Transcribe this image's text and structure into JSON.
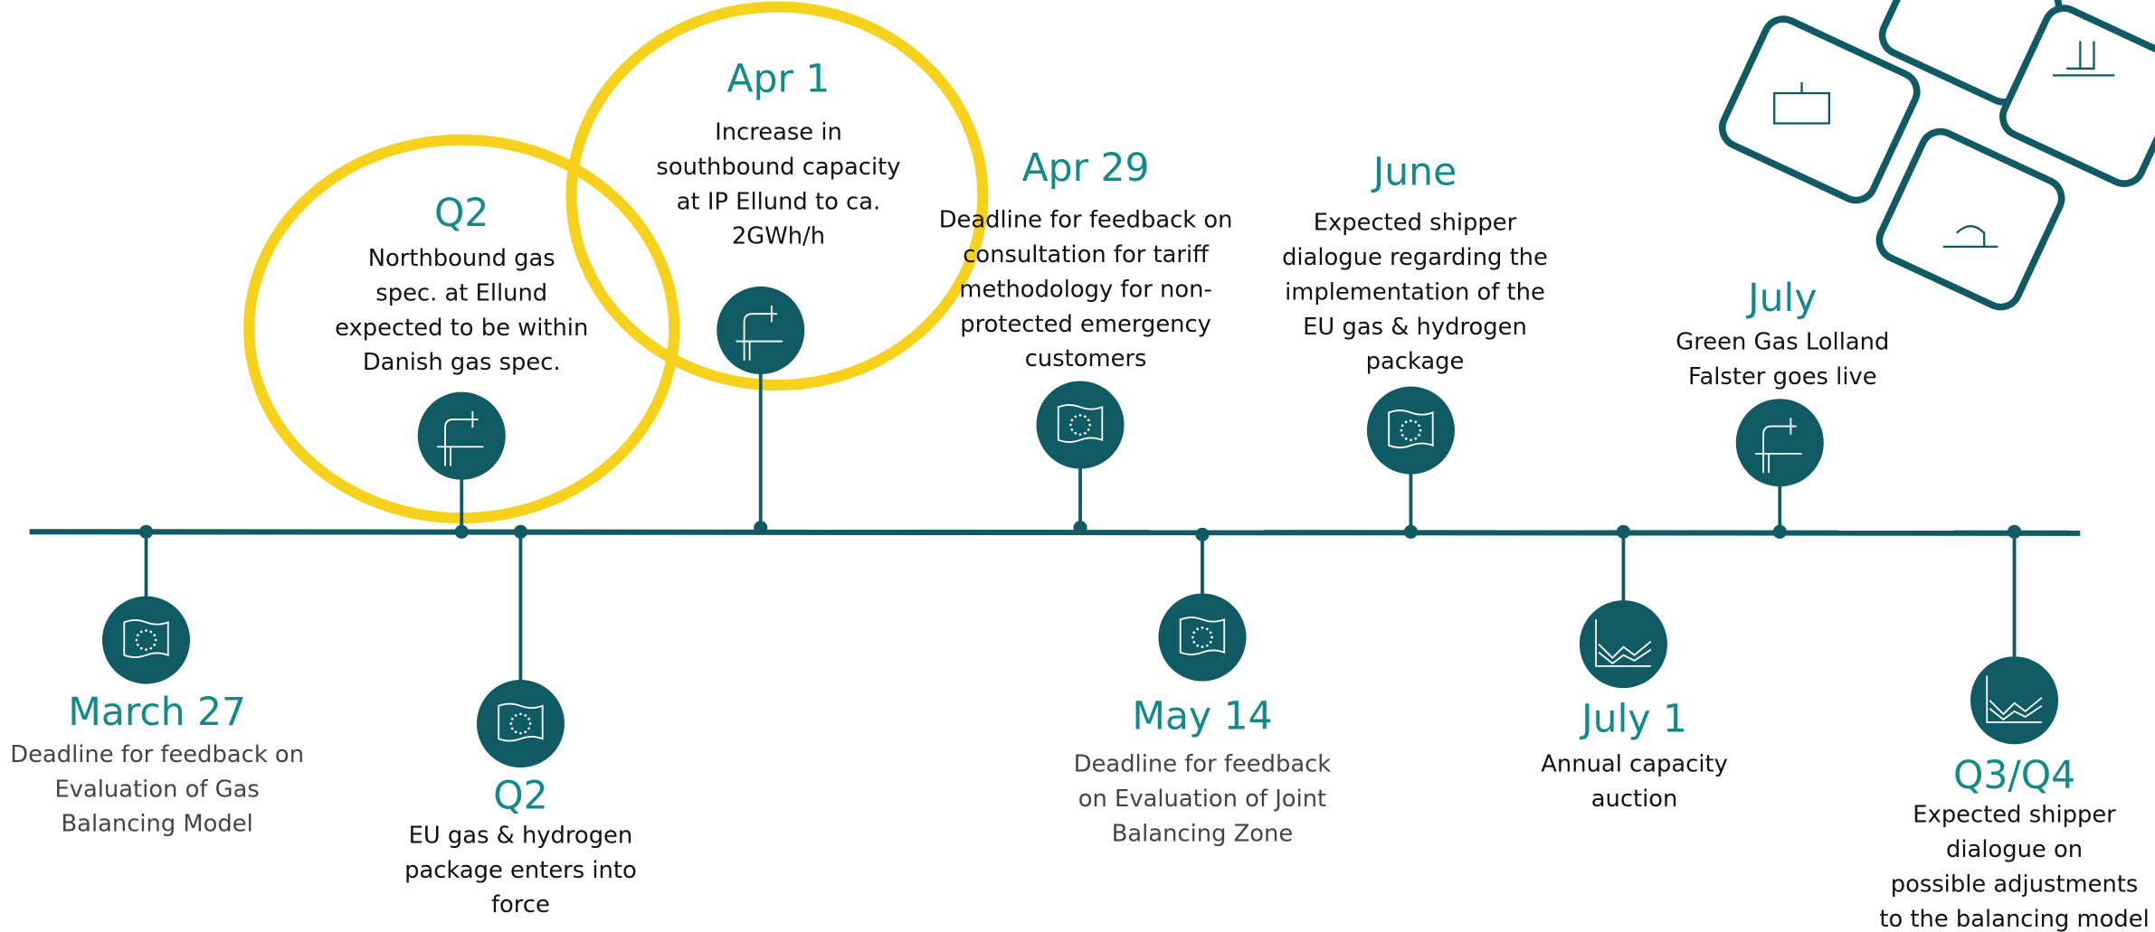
{
  "events": [
    {
      "date": "Q2",
      "lines": [
        "Northbound gas",
        "spec. at Ellund",
        "expected to be within",
        "Danish gas spec."
      ]
    },
    {
      "date": "Apr 1",
      "lines": [
        "Increase in",
        "southbound capacity",
        "at IP Ellund to ca.",
        "2GWh/h"
      ]
    },
    {
      "date": "Apr 29",
      "lines": [
        "Deadline for feedback on",
        "consultation for tariff",
        "methodology for non-",
        "protected emergency",
        "customers"
      ]
    },
    {
      "date": "June",
      "lines": [
        "Expected shipper",
        "dialogue regarding the",
        "implementation of the",
        "EU gas & hydrogen",
        "package"
      ]
    },
    {
      "date": "July",
      "lines": [
        "Green Gas Lolland",
        "Falster goes live"
      ]
    },
    {
      "date": "March 27",
      "lines": [
        "Deadline for feedback on",
        "Evaluation of Gas",
        "Balancing Model"
      ]
    },
    {
      "date": "Q2",
      "lines": [
        "EU gas & hydrogen",
        "package enters into",
        "force"
      ]
    },
    {
      "date": "May 14",
      "lines": [
        "Deadline for feedback",
        "on Evaluation of Joint",
        "Balancing Zone"
      ]
    },
    {
      "date": "July 1",
      "lines": [
        "Annual capacity",
        "auction"
      ]
    },
    {
      "date": "Q3/Q4",
      "lines": [
        "Expected shipper",
        "dialogue on",
        "possible adjustments",
        "to the balancing model"
      ]
    }
  ]
}
